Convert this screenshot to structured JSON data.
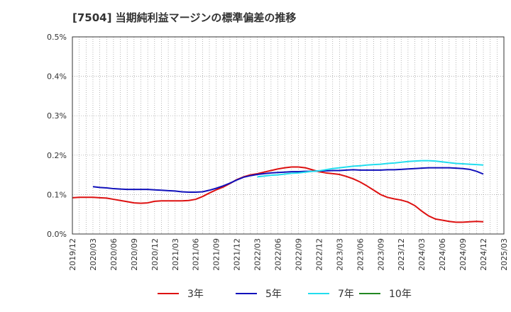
{
  "chart_data": {
    "type": "line",
    "title": "[7504]  当期純利益マージンの標準偏差の推移",
    "xlabel": "",
    "ylabel": "",
    "ylim": [
      0,
      0.005
    ],
    "grid": true,
    "legend_placement": "bottom",
    "y_ticks": [
      {
        "value": 0.0,
        "label": "0.0%"
      },
      {
        "value": 0.001,
        "label": "0.1%"
      },
      {
        "value": 0.002,
        "label": "0.2%"
      },
      {
        "value": 0.003,
        "label": "0.3%"
      },
      {
        "value": 0.004,
        "label": "0.4%"
      },
      {
        "value": 0.005,
        "label": "0.5%"
      }
    ],
    "x_tick_labels": [
      "2019/12",
      "2020/03",
      "2020/06",
      "2020/09",
      "2020/12",
      "2021/03",
      "2021/06",
      "2021/09",
      "2021/12",
      "2022/03",
      "2022/06",
      "2022/09",
      "2022/12",
      "2023/03",
      "2023/06",
      "2023/09",
      "2023/12",
      "2024/03",
      "2024/06",
      "2024/09",
      "2024/12",
      "2025/03"
    ],
    "series": [
      {
        "name": "3年",
        "color": "#dd1111",
        "points": [
          [
            "2019/12",
            0.00092
          ],
          [
            "2020/01",
            0.00093
          ],
          [
            "2020/02",
            0.00093
          ],
          [
            "2020/03",
            0.00093
          ],
          [
            "2020/04",
            0.00092
          ],
          [
            "2020/05",
            0.00091
          ],
          [
            "2020/06",
            0.00088
          ],
          [
            "2020/07",
            0.00085
          ],
          [
            "2020/08",
            0.00082
          ],
          [
            "2020/09",
            0.00079
          ],
          [
            "2020/10",
            0.00078
          ],
          [
            "2020/11",
            0.00079
          ],
          [
            "2020/12",
            0.00083
          ],
          [
            "2021/01",
            0.00084
          ],
          [
            "2021/02",
            0.00084
          ],
          [
            "2021/03",
            0.00084
          ],
          [
            "2021/04",
            0.00084
          ],
          [
            "2021/05",
            0.00085
          ],
          [
            "2021/06",
            0.00088
          ],
          [
            "2021/07",
            0.00095
          ],
          [
            "2021/08",
            0.00104
          ],
          [
            "2021/09",
            0.00112
          ],
          [
            "2021/10",
            0.00119
          ],
          [
            "2021/11",
            0.00128
          ],
          [
            "2021/12",
            0.00138
          ],
          [
            "2022/01",
            0.00145
          ],
          [
            "2022/02",
            0.0015
          ],
          [
            "2022/03",
            0.00153
          ],
          [
            "2022/04",
            0.00157
          ],
          [
            "2022/05",
            0.00161
          ],
          [
            "2022/06",
            0.00165
          ],
          [
            "2022/07",
            0.00168
          ],
          [
            "2022/08",
            0.0017
          ],
          [
            "2022/09",
            0.0017
          ],
          [
            "2022/10",
            0.00168
          ],
          [
            "2022/11",
            0.00163
          ],
          [
            "2022/12",
            0.00158
          ],
          [
            "2023/01",
            0.00155
          ],
          [
            "2023/02",
            0.00153
          ],
          [
            "2023/03",
            0.00151
          ],
          [
            "2023/04",
            0.00146
          ],
          [
            "2023/05",
            0.0014
          ],
          [
            "2023/06",
            0.00132
          ],
          [
            "2023/07",
            0.00122
          ],
          [
            "2023/08",
            0.00111
          ],
          [
            "2023/09",
            0.001
          ],
          [
            "2023/10",
            0.00093
          ],
          [
            "2023/11",
            0.00089
          ],
          [
            "2023/12",
            0.00086
          ],
          [
            "2024/01",
            0.00081
          ],
          [
            "2024/02",
            0.00072
          ],
          [
            "2024/03",
            0.00058
          ],
          [
            "2024/04",
            0.00046
          ],
          [
            "2024/05",
            0.00038
          ],
          [
            "2024/06",
            0.00035
          ],
          [
            "2024/07",
            0.00032
          ],
          [
            "2024/08",
            0.0003
          ],
          [
            "2024/09",
            0.0003
          ],
          [
            "2024/10",
            0.00031
          ],
          [
            "2024/11",
            0.00032
          ],
          [
            "2024/12",
            0.00031
          ]
        ]
      },
      {
        "name": "5年",
        "color": "#1111bb",
        "points": [
          [
            "2020/03",
            0.0012
          ],
          [
            "2020/04",
            0.00118
          ],
          [
            "2020/05",
            0.00117
          ],
          [
            "2020/06",
            0.00115
          ],
          [
            "2020/07",
            0.00114
          ],
          [
            "2020/08",
            0.00113
          ],
          [
            "2020/09",
            0.00113
          ],
          [
            "2020/10",
            0.00113
          ],
          [
            "2020/11",
            0.00113
          ],
          [
            "2020/12",
            0.00112
          ],
          [
            "2021/01",
            0.00111
          ],
          [
            "2021/02",
            0.0011
          ],
          [
            "2021/03",
            0.00109
          ],
          [
            "2021/04",
            0.00107
          ],
          [
            "2021/05",
            0.00106
          ],
          [
            "2021/06",
            0.00106
          ],
          [
            "2021/07",
            0.00107
          ],
          [
            "2021/08",
            0.00111
          ],
          [
            "2021/09",
            0.00116
          ],
          [
            "2021/10",
            0.00122
          ],
          [
            "2021/11",
            0.00129
          ],
          [
            "2021/12",
            0.00137
          ],
          [
            "2022/01",
            0.00144
          ],
          [
            "2022/02",
            0.00148
          ],
          [
            "2022/03",
            0.00151
          ],
          [
            "2022/04",
            0.00153
          ],
          [
            "2022/05",
            0.00155
          ],
          [
            "2022/06",
            0.00156
          ],
          [
            "2022/07",
            0.00157
          ],
          [
            "2022/08",
            0.00158
          ],
          [
            "2022/09",
            0.00158
          ],
          [
            "2022/10",
            0.00159
          ],
          [
            "2022/11",
            0.00159
          ],
          [
            "2022/12",
            0.0016
          ],
          [
            "2023/01",
            0.0016
          ],
          [
            "2023/02",
            0.00161
          ],
          [
            "2023/03",
            0.00161
          ],
          [
            "2023/04",
            0.00162
          ],
          [
            "2023/05",
            0.00163
          ],
          [
            "2023/06",
            0.00162
          ],
          [
            "2023/07",
            0.00162
          ],
          [
            "2023/08",
            0.00162
          ],
          [
            "2023/09",
            0.00162
          ],
          [
            "2023/10",
            0.00163
          ],
          [
            "2023/11",
            0.00163
          ],
          [
            "2023/12",
            0.00164
          ],
          [
            "2024/01",
            0.00165
          ],
          [
            "2024/02",
            0.00166
          ],
          [
            "2024/03",
            0.00167
          ],
          [
            "2024/04",
            0.00168
          ],
          [
            "2024/05",
            0.00168
          ],
          [
            "2024/06",
            0.00168
          ],
          [
            "2024/07",
            0.00168
          ],
          [
            "2024/08",
            0.00167
          ],
          [
            "2024/09",
            0.00166
          ],
          [
            "2024/10",
            0.00164
          ],
          [
            "2024/11",
            0.00159
          ],
          [
            "2024/12",
            0.00152
          ]
        ]
      },
      {
        "name": "7年",
        "color": "#22ddee",
        "points": [
          [
            "2022/03",
            0.00145
          ],
          [
            "2022/04",
            0.00147
          ],
          [
            "2022/05",
            0.00149
          ],
          [
            "2022/06",
            0.0015
          ],
          [
            "2022/07",
            0.00152
          ],
          [
            "2022/08",
            0.00154
          ],
          [
            "2022/09",
            0.00155
          ],
          [
            "2022/10",
            0.00157
          ],
          [
            "2022/11",
            0.00159
          ],
          [
            "2022/12",
            0.0016
          ],
          [
            "2023/01",
            0.00163
          ],
          [
            "2023/02",
            0.00166
          ],
          [
            "2023/03",
            0.00168
          ],
          [
            "2023/04",
            0.0017
          ],
          [
            "2023/05",
            0.00172
          ],
          [
            "2023/06",
            0.00173
          ],
          [
            "2023/07",
            0.00175
          ],
          [
            "2023/08",
            0.00176
          ],
          [
            "2023/09",
            0.00177
          ],
          [
            "2023/10",
            0.00179
          ],
          [
            "2023/11",
            0.0018
          ],
          [
            "2023/12",
            0.00182
          ],
          [
            "2024/01",
            0.00184
          ],
          [
            "2024/02",
            0.00185
          ],
          [
            "2024/03",
            0.00186
          ],
          [
            "2024/04",
            0.00186
          ],
          [
            "2024/05",
            0.00185
          ],
          [
            "2024/06",
            0.00183
          ],
          [
            "2024/07",
            0.00181
          ],
          [
            "2024/08",
            0.00179
          ],
          [
            "2024/09",
            0.00178
          ],
          [
            "2024/10",
            0.00177
          ],
          [
            "2024/11",
            0.00176
          ],
          [
            "2024/12",
            0.00175
          ]
        ]
      },
      {
        "name": "10年",
        "color": "#228822",
        "points": []
      }
    ]
  }
}
